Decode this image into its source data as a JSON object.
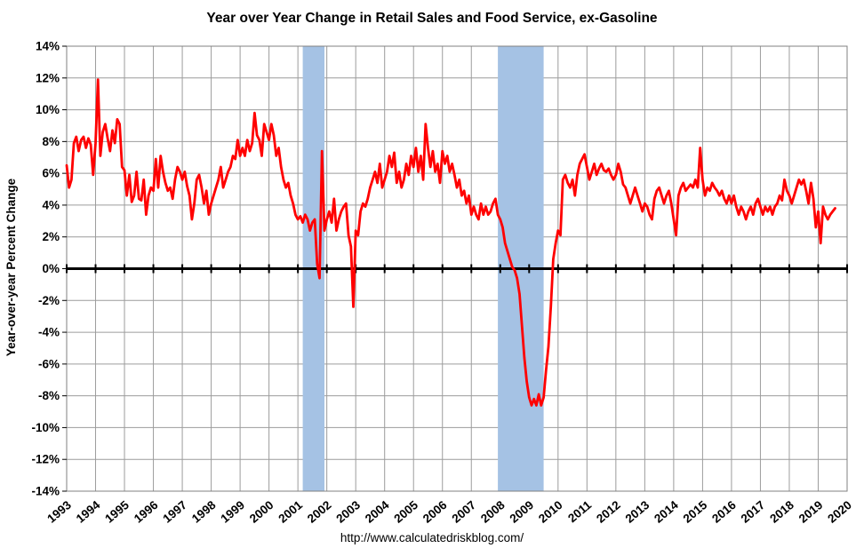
{
  "chart_data": {
    "type": "line",
    "title": "Year over Year Change in Retail Sales and Food Service, ex-Gasoline",
    "ylabel": "Year-over-year Percent Change",
    "xlabel": "",
    "caption": "http://www.calculatedriskblog.com/",
    "legend": "none",
    "grid": "on",
    "ylim": [
      -14,
      14
    ],
    "xlim": [
      1993,
      2020
    ],
    "yticks": [
      14,
      12,
      10,
      8,
      6,
      4,
      2,
      0,
      -2,
      -4,
      -6,
      -8,
      -10,
      -12,
      -14
    ],
    "xticks": [
      1993,
      1994,
      1995,
      1996,
      1997,
      1998,
      1999,
      2000,
      2001,
      2002,
      2003,
      2004,
      2005,
      2006,
      2007,
      2008,
      2009,
      2010,
      2011,
      2012,
      2013,
      2014,
      2015,
      2016,
      2017,
      2018,
      2019,
      2020
    ],
    "start_year": 1993,
    "frequency": "monthly",
    "series_name": "YoY % change, retail sales and food service ex-gasoline",
    "values": [
      [
        6.5,
        5.1,
        5.6,
        7.9,
        8.3,
        7.4,
        8.1,
        8.3,
        7.6,
        8.2,
        7.8,
        5.9
      ],
      [
        7.9,
        11.9,
        7.1,
        8.6,
        9.1,
        8.2,
        7.4,
        8.7,
        7.9,
        9.4,
        9.1,
        6.4
      ],
      [
        6.2,
        4.6,
        5.9,
        4.2,
        4.6,
        6.1,
        4.4,
        4.3,
        5.6,
        3.4,
        4.6,
        5.1
      ],
      [
        4.9,
        6.9,
        5.1,
        7.1,
        6.1,
        5.4,
        4.9,
        5.1,
        4.4,
        5.6,
        6.4,
        6.1
      ],
      [
        5.6,
        6.1,
        5.2,
        4.6,
        3.1,
        4.1,
        5.6,
        5.9,
        5.1,
        4.1,
        4.9,
        3.4
      ],
      [
        4.1,
        4.6,
        5.1,
        5.6,
        6.4,
        5.1,
        5.6,
        6.1,
        6.4,
        7.1,
        6.9,
        8.1
      ],
      [
        7.1,
        7.6,
        7.1,
        8.1,
        7.4,
        7.9,
        9.8,
        8.4,
        8.1,
        7.1,
        9.1,
        8.6
      ],
      [
        8.1,
        9.1,
        8.4,
        7.1,
        7.6,
        6.4,
        5.6,
        5.1,
        5.4,
        4.6,
        4.1,
        3.4
      ],
      [
        3.1,
        3.3,
        2.9,
        3.4,
        3.1,
        2.4,
        2.9,
        3.1,
        0.3,
        -0.6,
        7.4,
        2.4
      ],
      [
        3.1,
        3.6,
        2.9,
        4.4,
        2.4,
        3.1,
        3.6,
        3.9,
        4.1,
        2.1,
        1.4,
        -2.4
      ],
      [
        2.4,
        2.1,
        3.6,
        4.1,
        3.9,
        4.4,
        5.1,
        5.6,
        6.1,
        5.4,
        6.6,
        5.1
      ],
      [
        5.6,
        6.1,
        7.1,
        6.4,
        7.3,
        5.4,
        6.1,
        5.1,
        5.6,
        6.6,
        5.9,
        7.1
      ],
      [
        6.4,
        7.6,
        6.1,
        7.1,
        5.6,
        9.1,
        7.6,
        6.4,
        7.4,
        6.1,
        6.6,
        5.4
      ],
      [
        7.4,
        6.6,
        7.1,
        6.1,
        6.6,
        5.9,
        5.1,
        5.6,
        4.6,
        4.9,
        4.1,
        4.6
      ],
      [
        3.4,
        3.9,
        3.4,
        3.1,
        4.1,
        3.4,
        3.9,
        3.4,
        3.6,
        4.1,
        4.4,
        3.4
      ],
      [
        3.1,
        2.6,
        1.6,
        1.1,
        0.6,
        0.1,
        -0.1,
        -0.6,
        -1.6,
        -3.6,
        -5.6,
        -7.1
      ],
      [
        -8.1,
        -8.6,
        -8.2,
        -8.6,
        -7.9,
        -8.6,
        -8.1,
        -6.4,
        -4.9,
        -2.4,
        0.6,
        1.6
      ],
      [
        2.4,
        2.1,
        5.6,
        5.9,
        5.4,
        5.1,
        5.6,
        4.6,
        5.9,
        6.6,
        6.9,
        7.2
      ],
      [
        6.4,
        5.6,
        6.1,
        6.6,
        5.9,
        6.3,
        6.6,
        6.2,
        6.1,
        6.3,
        5.9,
        5.6
      ],
      [
        5.9,
        6.6,
        6.1,
        5.3,
        5.1,
        4.6,
        4.1,
        4.6,
        5.1,
        4.6,
        4.1,
        3.6
      ],
      [
        4.1,
        3.9,
        3.4,
        3.1,
        4.4,
        4.9,
        5.1,
        4.6,
        4.1,
        4.6,
        4.9,
        4.1
      ],
      [
        3.1,
        2.1,
        4.6,
        5.1,
        5.4,
        4.9,
        5.1,
        5.3,
        5.1,
        5.6,
        5.1,
        7.6
      ],
      [
        5.6,
        4.6,
        5.1,
        4.9,
        5.4,
        5.1,
        4.9,
        4.6,
        4.9,
        4.4,
        4.1,
        4.6
      ],
      [
        4.1,
        4.6,
        3.9,
        3.4,
        3.9,
        3.6,
        3.1,
        3.6,
        3.9,
        3.4,
        4.1,
        4.4
      ],
      [
        3.9,
        3.4,
        3.9,
        3.6,
        3.9,
        3.4,
        3.9,
        4.1,
        4.6,
        4.3,
        5.6,
        4.9
      ],
      [
        4.6,
        4.1,
        4.6,
        5.1,
        5.6,
        5.3,
        5.6,
        4.9,
        4.1,
        5.4,
        4.4,
        2.6
      ],
      [
        3.6,
        1.6,
        3.9,
        3.4,
        3.1,
        3.4,
        3.6,
        3.8
      ]
    ],
    "recessions": [
      {
        "label": "2001 recession",
        "start_year": 2001,
        "start_month": 3,
        "end_year": 2001,
        "end_month": 11
      },
      {
        "label": "2007-2009 recession",
        "start_year": 2007,
        "start_month": 12,
        "end_year": 2009,
        "end_month": 6
      }
    ],
    "colors": {
      "line": "#FF0000",
      "recession_band": "#A5C2E4",
      "grid": "#9C9C9C",
      "border": "#808080",
      "zero_line": "#000000",
      "background": "#FFFFFF"
    }
  }
}
